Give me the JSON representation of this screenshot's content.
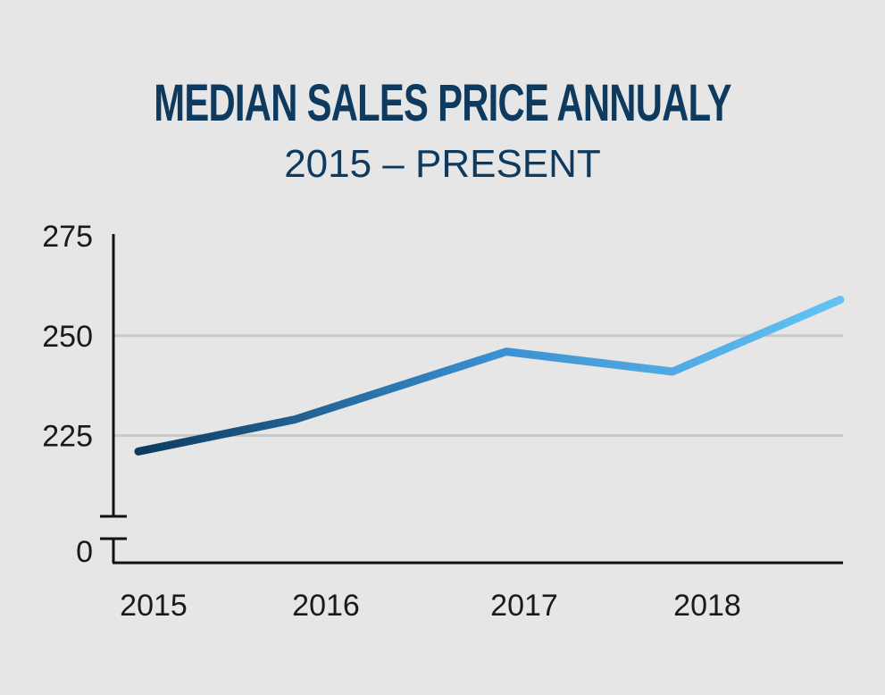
{
  "chart_data": {
    "type": "line",
    "title": "MEDIAN SALES PRICE ANNUALY",
    "subtitle": "2015 – PRESENT",
    "x": [
      "2015",
      "2016",
      "2017",
      "2018",
      ""
    ],
    "series": [
      {
        "values": [
          221,
          229,
          246,
          241,
          259
        ]
      }
    ],
    "ylim": [
      0,
      275
    ],
    "y_axis_break": true,
    "y_ticks": [
      "0",
      "225",
      "250",
      "275"
    ],
    "x_tick_labels": [
      "2015",
      "2016",
      "2017",
      "2018"
    ],
    "grid": true,
    "line_gradient": [
      "#0d3a5e",
      "#3a8fcf",
      "#63c3f5"
    ]
  }
}
